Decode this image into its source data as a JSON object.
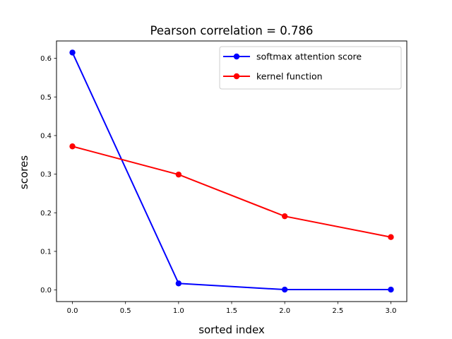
{
  "chart_data": {
    "type": "line",
    "title": "Pearson correlation =  0.786",
    "xlabel": "sorted index",
    "ylabel": "scores",
    "xlim": [
      -0.15,
      3.15
    ],
    "ylim": [
      -0.03,
      0.645
    ],
    "x_ticks": [
      0.0,
      0.5,
      1.0,
      1.5,
      2.0,
      2.5,
      3.0
    ],
    "x_tick_labels": [
      "0.0",
      "0.5",
      "1.0",
      "1.5",
      "2.0",
      "2.5",
      "3.0"
    ],
    "y_ticks": [
      0.0,
      0.1,
      0.2,
      0.3,
      0.4,
      0.5,
      0.6
    ],
    "y_tick_labels": [
      "0.0",
      "0.1",
      "0.2",
      "0.3",
      "0.4",
      "0.5",
      "0.6"
    ],
    "grid": false,
    "legend_position": "top-right",
    "x": [
      0,
      1,
      2,
      3
    ],
    "series": [
      {
        "name": "softmax attention score",
        "color": "#0000ff",
        "marker": "circle",
        "values": [
          0.615,
          0.017,
          0.001,
          0.001
        ]
      },
      {
        "name": "kernel function",
        "color": "#ff0000",
        "marker": "circle",
        "values": [
          0.372,
          0.299,
          0.191,
          0.137
        ]
      }
    ]
  }
}
